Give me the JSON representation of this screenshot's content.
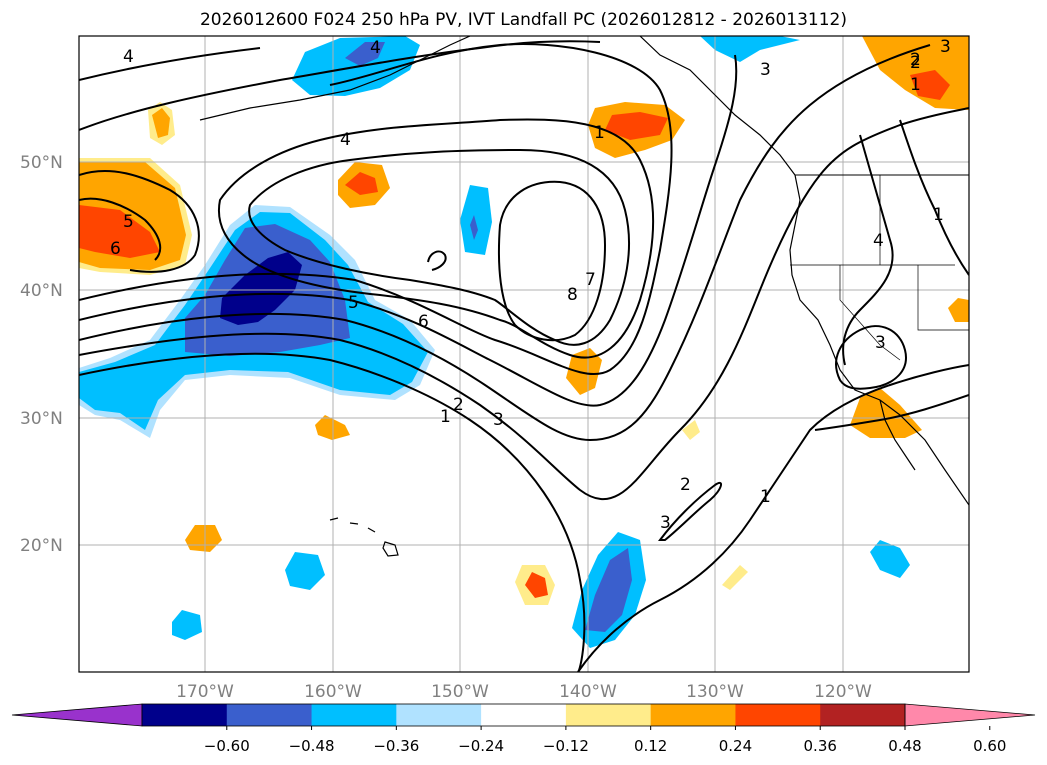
{
  "title": "2026012600 F024 250 hPa PV, IVT Landfall PC (2026012812 - 2026013112)",
  "lat_ticks": [
    "50°N",
    "40°N",
    "30°N",
    "20°N"
  ],
  "lon_ticks": [
    "170°W",
    "160°W",
    "150°W",
    "140°W",
    "130°W",
    "120°W"
  ],
  "colorbar": {
    "labels": [
      "−0.60",
      "−0.48",
      "−0.36",
      "−0.24",
      "−0.12",
      "0.12",
      "0.24",
      "0.36",
      "0.48",
      "0.60"
    ],
    "levels": [
      -0.6,
      -0.48,
      -0.36,
      -0.24,
      -0.12,
      0.12,
      0.24,
      0.36,
      0.48,
      0.6
    ],
    "colors": [
      "#9932cc",
      "#00008b",
      "#3a5fcd",
      "#00bfff",
      "#b0e2ff",
      "#ffffff",
      "#ffec8b",
      "#ffa500",
      "#ff4500",
      "#b22222",
      "#ff88aa"
    ]
  },
  "contour_labels": [
    "4",
    "4",
    "4",
    "5",
    "6",
    "5",
    "6",
    "7",
    "8",
    "1",
    "2",
    "3",
    "2",
    "3",
    "1",
    "3",
    "2",
    "1",
    "1",
    "4",
    "3",
    "1",
    "2",
    "3"
  ],
  "land_color": "#ffffff",
  "coast_color": "#000000",
  "grid_color": "#b0b0b0"
}
